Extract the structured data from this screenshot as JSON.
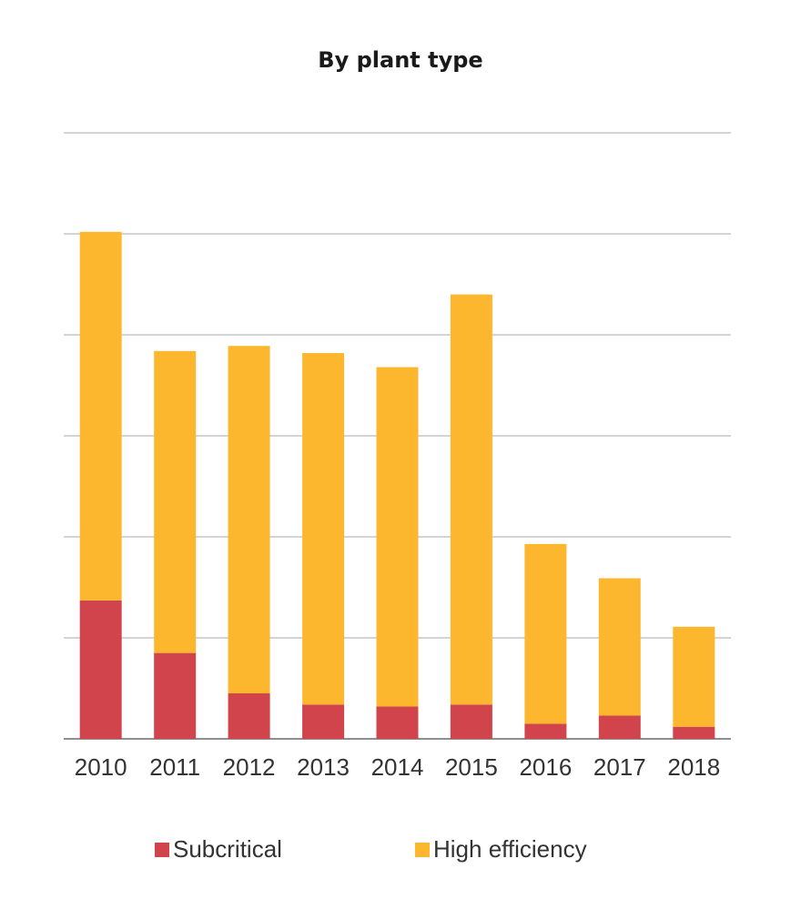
{
  "chart_data": {
    "type": "bar",
    "stacked": true,
    "title": "By plant type",
    "xlabel": "",
    "ylabel": "",
    "categories": [
      "2010",
      "2011",
      "2012",
      "2013",
      "2014",
      "2015",
      "2016",
      "2017",
      "2018"
    ],
    "series": [
      {
        "name": "Subcritical",
        "color": "#D2444C",
        "values": [
          1.37,
          0.85,
          0.45,
          0.34,
          0.32,
          0.34,
          0.15,
          0.23,
          0.12
        ]
      },
      {
        "name": "High efficiency",
        "color": "#FDB72F",
        "values": [
          3.65,
          2.99,
          3.44,
          3.48,
          3.36,
          4.06,
          1.78,
          1.36,
          0.99
        ]
      }
    ],
    "ylim": [
      0,
      6
    ],
    "gridlines": [
      1,
      2,
      3,
      4,
      5,
      6
    ],
    "grid": true,
    "legend_position": "bottom"
  }
}
